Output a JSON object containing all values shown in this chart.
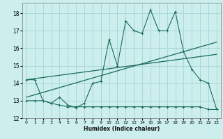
{
  "xlabel": "Humidex (Indice chaleur)",
  "bg_color": "#cceeed",
  "grid_color": "#aad8d8",
  "line_color": "#1a6b5a",
  "xlim": [
    -0.5,
    23.5
  ],
  "ylim": [
    12,
    18.6
  ],
  "yticks": [
    12,
    13,
    14,
    15,
    16,
    17,
    18
  ],
  "xticks": [
    0,
    1,
    2,
    3,
    4,
    5,
    6,
    7,
    8,
    9,
    10,
    11,
    12,
    13,
    14,
    15,
    16,
    17,
    18,
    19,
    20,
    21,
    22,
    23
  ],
  "line1_x": [
    0,
    1,
    2,
    3,
    4,
    5,
    6,
    7,
    8,
    9,
    10,
    11,
    12,
    13,
    14,
    15,
    16,
    17,
    18,
    19,
    20,
    21,
    22,
    23
  ],
  "line1_y": [
    14.2,
    14.2,
    13.0,
    12.85,
    13.2,
    12.75,
    12.6,
    12.85,
    14.0,
    14.1,
    16.5,
    15.0,
    17.55,
    17.0,
    16.85,
    18.2,
    17.0,
    17.0,
    18.1,
    15.8,
    14.8,
    14.2,
    14.0,
    12.5
  ],
  "line2_x": [
    0,
    1,
    2,
    3,
    4,
    5,
    6,
    7,
    8,
    9,
    10,
    11,
    12,
    13,
    14,
    15,
    16,
    17,
    18,
    19,
    20,
    21,
    22,
    23
  ],
  "line2_y": [
    13.0,
    13.0,
    13.0,
    12.85,
    12.75,
    12.65,
    12.65,
    12.65,
    12.65,
    12.65,
    12.65,
    12.65,
    12.65,
    12.65,
    12.65,
    12.65,
    12.65,
    12.65,
    12.65,
    12.65,
    12.65,
    12.65,
    12.5,
    12.5
  ],
  "line3_x": [
    0,
    23
  ],
  "line3_y": [
    13.2,
    16.35
  ],
  "line4_x": [
    0,
    23
  ],
  "line4_y": [
    14.2,
    15.65
  ]
}
